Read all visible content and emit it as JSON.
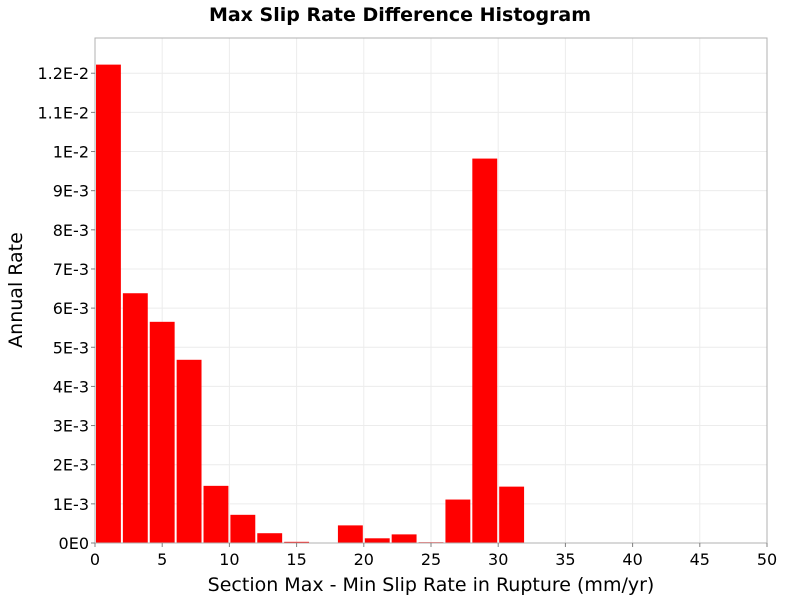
{
  "chart_data": {
    "type": "bar",
    "title": "Max Slip Rate Difference Histogram",
    "xlabel": "Section Max - Min Slip Rate in Rupture (mm/yr)",
    "ylabel": "Annual Rate",
    "xlim": [
      0,
      50
    ],
    "ylim": [
      0,
      0.0129
    ],
    "x_ticks": [
      0,
      5,
      10,
      15,
      20,
      25,
      30,
      35,
      40,
      45,
      50
    ],
    "x_tick_labels": [
      "0",
      "5",
      "10",
      "15",
      "20",
      "25",
      "30",
      "35",
      "40",
      "45",
      "50"
    ],
    "y_ticks": [
      0,
      0.001,
      0.002,
      0.003,
      0.004,
      0.005,
      0.006,
      0.007,
      0.008,
      0.009,
      0.01,
      0.011,
      0.012
    ],
    "y_tick_labels": [
      "0E0",
      "1E-3",
      "2E-3",
      "3E-3",
      "4E-3",
      "5E-3",
      "6E-3",
      "7E-3",
      "8E-3",
      "9E-3",
      "1E-2",
      "1.1E-2",
      "1.2E-2"
    ],
    "bin_width": 2,
    "bins": [
      {
        "x0": 0,
        "x1": 2,
        "value": 0.01222
      },
      {
        "x0": 2,
        "x1": 4,
        "value": 0.00638
      },
      {
        "x0": 4,
        "x1": 6,
        "value": 0.00565
      },
      {
        "x0": 6,
        "x1": 8,
        "value": 0.00468
      },
      {
        "x0": 8,
        "x1": 10,
        "value": 0.00146
      },
      {
        "x0": 10,
        "x1": 12,
        "value": 0.00072
      },
      {
        "x0": 12,
        "x1": 14,
        "value": 0.00025
      },
      {
        "x0": 14,
        "x1": 16,
        "value": 3e-05
      },
      {
        "x0": 16,
        "x1": 18,
        "value": 0.0
      },
      {
        "x0": 18,
        "x1": 20,
        "value": 0.00045
      },
      {
        "x0": 20,
        "x1": 22,
        "value": 0.00012
      },
      {
        "x0": 22,
        "x1": 24,
        "value": 0.00022
      },
      {
        "x0": 24,
        "x1": 26,
        "value": 2e-05
      },
      {
        "x0": 26,
        "x1": 28,
        "value": 0.00111
      },
      {
        "x0": 28,
        "x1": 30,
        "value": 0.00982
      },
      {
        "x0": 30,
        "x1": 32,
        "value": 0.00144
      }
    ],
    "bar_color": "#ff0000",
    "grid": true,
    "grid_color": "#ececec",
    "legend": "none"
  }
}
